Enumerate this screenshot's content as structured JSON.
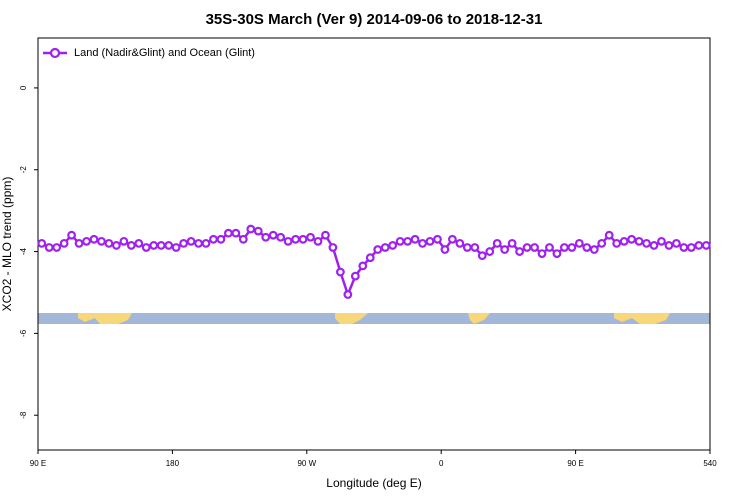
{
  "chart_data": {
    "type": "line",
    "title": "35S-30S March (Ver 9)   2014-09-06 to 2018-12-31",
    "x_label": "Longitude (deg E)",
    "y_label": "XCO2 - MLO trend (ppm)",
    "x": [
      92.5,
      97.5,
      102.5,
      107.5,
      112.5,
      117.5,
      122.5,
      127.5,
      132.5,
      137.5,
      142.5,
      147.5,
      152.5,
      157.5,
      162.5,
      167.5,
      172.5,
      177.5,
      182.5,
      187.5,
      192.5,
      197.5,
      202.5,
      207.5,
      212.5,
      217.5,
      222.5,
      227.5,
      232.5,
      237.5,
      242.5,
      247.5,
      252.5,
      257.5,
      262.5,
      267.5,
      272.5,
      277.5,
      282.5,
      287.5,
      292.5,
      297.5,
      302.5,
      307.5,
      312.5,
      317.5,
      322.5,
      327.5,
      332.5,
      337.5,
      342.5,
      347.5,
      352.5,
      357.5,
      362.5,
      367.5,
      372.5,
      377.5,
      382.5,
      387.5,
      392.5,
      397.5,
      402.5,
      407.5,
      412.5,
      417.5,
      422.5,
      427.5,
      432.5,
      437.5,
      442.5,
      447.5,
      452.5,
      457.5,
      462.5,
      467.5,
      472.5,
      477.5,
      482.5,
      487.5,
      492.5,
      497.5,
      502.5,
      507.5,
      512.5,
      517.5,
      522.5,
      527.5,
      532.5,
      537.5
    ],
    "series": [
      {
        "name": "Land (Nadir&Glint) and Ocean (Glint)",
        "color": "#a020f0",
        "values": [
          -3.8,
          -3.9,
          -3.9,
          -3.8,
          -3.6,
          -3.8,
          -3.75,
          -3.7,
          -3.75,
          -3.8,
          -3.85,
          -3.75,
          -3.85,
          -3.8,
          -3.9,
          -3.85,
          -3.85,
          -3.85,
          -3.9,
          -3.8,
          -3.75,
          -3.8,
          -3.8,
          -3.7,
          -3.7,
          -3.55,
          -3.55,
          -3.7,
          -3.45,
          -3.5,
          -3.65,
          -3.6,
          -3.65,
          -3.75,
          -3.7,
          -3.7,
          -3.65,
          -3.75,
          -3.6,
          -3.9,
          -4.5,
          -5.05,
          -4.6,
          -4.35,
          -4.15,
          -3.95,
          -3.9,
          -3.85,
          -3.75,
          -3.75,
          -3.7,
          -3.8,
          -3.75,
          -3.7,
          -3.95,
          -3.7,
          -3.8,
          -3.9,
          -3.9,
          -4.1,
          -4.0,
          -3.8,
          -3.95,
          -3.8,
          -4.0,
          -3.9,
          -3.9,
          -4.05,
          -3.9,
          -4.05,
          -3.9,
          -3.9,
          -3.8,
          -3.9,
          -3.95,
          -3.8,
          -3.6,
          -3.8,
          -3.75,
          -3.7,
          -3.75,
          -3.8,
          -3.85,
          -3.75,
          -3.85,
          -3.8,
          -3.9,
          -3.9,
          -3.85,
          -3.85
        ]
      }
    ],
    "xlim": [
      90,
      540
    ],
    "xticks": [
      {
        "value": 90,
        "label": "90 E"
      },
      180,
      {
        "value": 270,
        "label": "90 W"
      },
      {
        "value": 360,
        "label": "0"
      },
      {
        "value": 450,
        "label": "90 E"
      },
      540
    ],
    "ylim": [
      -8.85,
      1.22
    ],
    "yticks": [
      0,
      -2,
      -4,
      -6,
      -8
    ],
    "legend_position": "top-left"
  }
}
